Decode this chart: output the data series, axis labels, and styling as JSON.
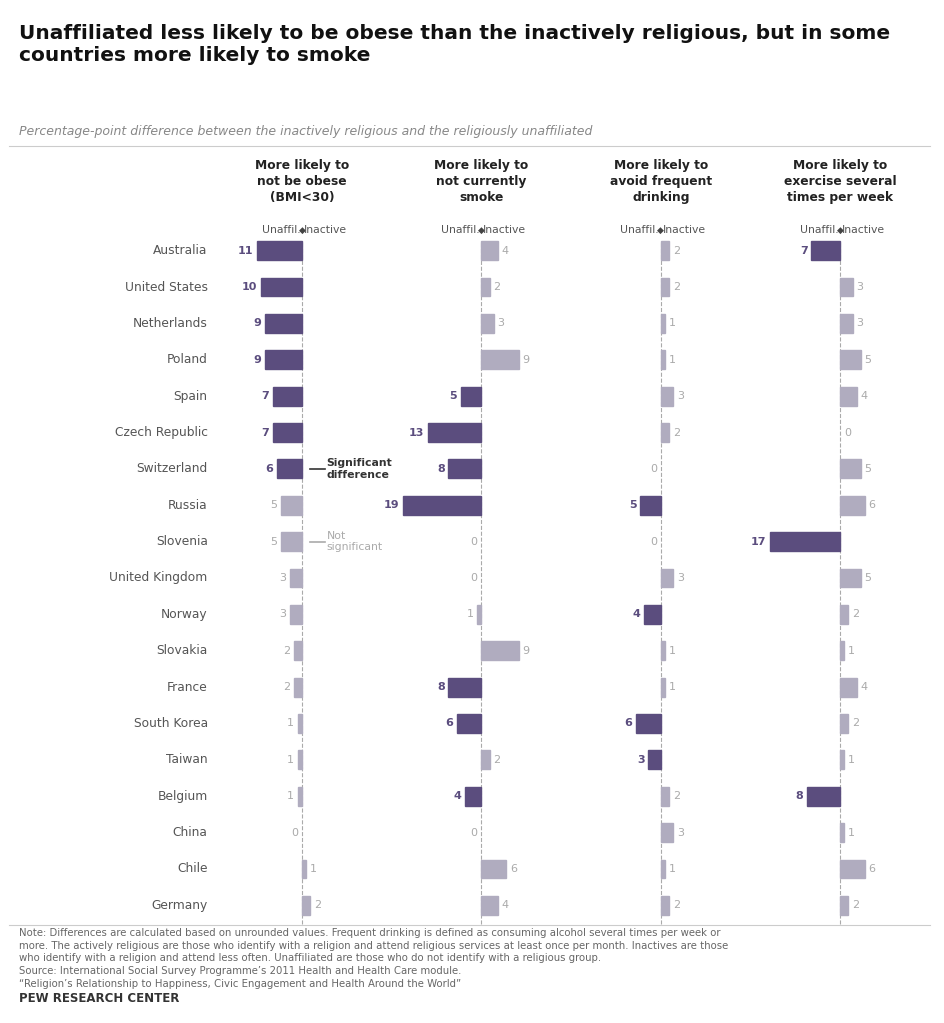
{
  "title": "Unaffiliated less likely to be obese than the inactively religious, but in some\ncountries more likely to smoke",
  "subtitle": "Percentage-point difference between the inactively religious and the religiously unaffiliated",
  "countries": [
    "Australia",
    "United States",
    "Netherlands",
    "Poland",
    "Spain",
    "Czech Republic",
    "Switzerland",
    "Russia",
    "Slovenia",
    "United Kingdom",
    "Norway",
    "Slovakia",
    "France",
    "South Korea",
    "Taiwan",
    "Belgium",
    "China",
    "Chile",
    "Germany"
  ],
  "col_headers": [
    "More likely to\nnot be obese\n(BMI<30)",
    "More likely to\nnot currently\nsmoke",
    "More likely to\navoid frequent\ndrinking",
    "More likely to\nexercise several\ntimes per week"
  ],
  "obesity": {
    "unaffil": [
      11,
      10,
      9,
      9,
      7,
      7,
      6,
      5,
      5,
      3,
      3,
      2,
      2,
      1,
      1,
      1,
      0,
      null,
      null
    ],
    "inactive": [
      null,
      null,
      null,
      null,
      null,
      null,
      null,
      null,
      null,
      null,
      null,
      null,
      null,
      null,
      null,
      null,
      null,
      1,
      2
    ],
    "sig": [
      true,
      true,
      true,
      true,
      true,
      true,
      true,
      false,
      false,
      false,
      false,
      false,
      false,
      false,
      false,
      false,
      false,
      false,
      false
    ]
  },
  "smoke": {
    "unaffil": [
      null,
      null,
      null,
      null,
      5,
      13,
      8,
      19,
      0,
      0,
      1,
      null,
      8,
      6,
      null,
      4,
      0,
      null,
      null
    ],
    "inactive": [
      4,
      2,
      3,
      9,
      null,
      null,
      null,
      null,
      null,
      null,
      null,
      9,
      null,
      null,
      2,
      null,
      null,
      6,
      4
    ],
    "sig": [
      false,
      false,
      false,
      false,
      true,
      true,
      true,
      true,
      false,
      false,
      false,
      false,
      true,
      true,
      false,
      true,
      false,
      false,
      false
    ]
  },
  "drink": {
    "unaffil": [
      null,
      null,
      null,
      null,
      null,
      null,
      0,
      5,
      0,
      null,
      4,
      null,
      null,
      6,
      3,
      null,
      null,
      null,
      null
    ],
    "inactive": [
      2,
      2,
      1,
      1,
      3,
      2,
      null,
      null,
      null,
      3,
      null,
      1,
      1,
      null,
      null,
      2,
      3,
      1,
      2
    ],
    "sig": [
      false,
      false,
      false,
      false,
      false,
      false,
      false,
      true,
      false,
      false,
      true,
      false,
      false,
      true,
      true,
      false,
      false,
      false,
      false
    ]
  },
  "exercise": {
    "unaffil": [
      7,
      null,
      null,
      null,
      null,
      null,
      null,
      null,
      17,
      null,
      null,
      null,
      null,
      null,
      null,
      8,
      null,
      null,
      null
    ],
    "inactive": [
      null,
      3,
      3,
      5,
      4,
      0,
      5,
      6,
      null,
      5,
      2,
      1,
      4,
      2,
      1,
      null,
      1,
      6,
      2
    ],
    "sig": [
      true,
      false,
      false,
      false,
      false,
      false,
      false,
      false,
      true,
      false,
      false,
      false,
      false,
      false,
      false,
      true,
      false,
      false,
      false
    ]
  },
  "purple": "#5b4d7e",
  "gray_bar": "#b0acbf",
  "text_purple": "#5b4d7e",
  "text_gray": "#aaaaaa",
  "note_text": "Note: Differences are calculated based on unrounded values. Frequent drinking is defined as consuming alcohol several times per week or\nmore. The actively religious are those who identify with a religion and attend religious services at least once per month. Inactives are those\nwho identify with a religion and attend less often. Unaffiliated are those who do not identify with a religious group.\nSource: International Social Survey Programme’s 2011 Health and Health Care module.\n“Religion’s Relationship to Happiness, Civic Engagement and Health Around the World”",
  "background": "#ffffff"
}
